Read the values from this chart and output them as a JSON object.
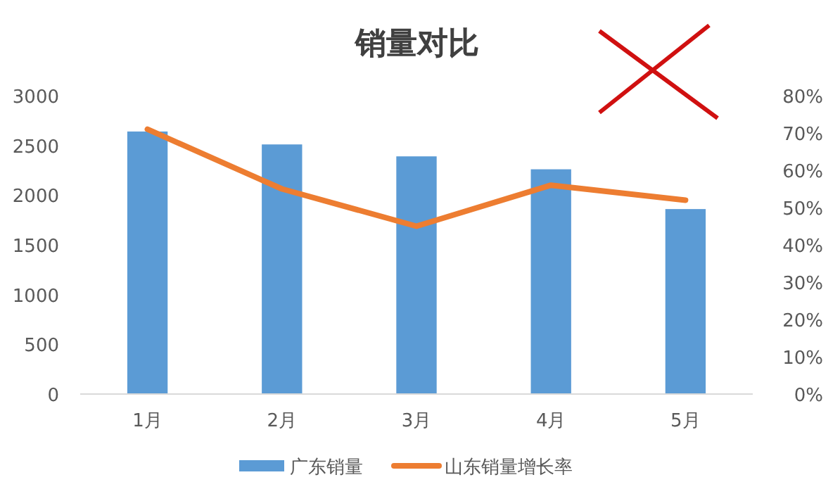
{
  "chart_data": {
    "type": "bar",
    "title": "销量对比",
    "categories": [
      "1月",
      "2月",
      "3月",
      "4月",
      "5月"
    ],
    "series": [
      {
        "name": "广东销量",
        "color": "#5b9bd5",
        "values": [
          2640,
          2510,
          2390,
          2260,
          1860
        ]
      },
      {
        "name": "山东销量增长率",
        "type": "line",
        "axis": "y2",
        "color": "#ed7d31",
        "values": [
          0.71,
          0.55,
          0.45,
          0.56,
          0.52
        ]
      }
    ],
    "ylim": [
      0,
      3000
    ],
    "yticks": [
      0,
      500,
      1000,
      1500,
      2000,
      2500,
      3000
    ],
    "y2lim": [
      0,
      0.8
    ],
    "y2ticks": [
      {
        "value": 0,
        "label": "0%"
      },
      {
        "value": 0.1,
        "label": "10%"
      },
      {
        "value": 0.2,
        "label": "20%"
      },
      {
        "value": 0.3,
        "label": "30%"
      },
      {
        "value": 0.4,
        "label": "40%"
      },
      {
        "value": 0.5,
        "label": "50%"
      },
      {
        "value": 0.6,
        "label": "60%"
      },
      {
        "value": 0.7,
        "label": "70%"
      },
      {
        "value": 0.8,
        "label": "80%"
      }
    ],
    "grid": false,
    "legend": "bottom",
    "marker": "none"
  }
}
